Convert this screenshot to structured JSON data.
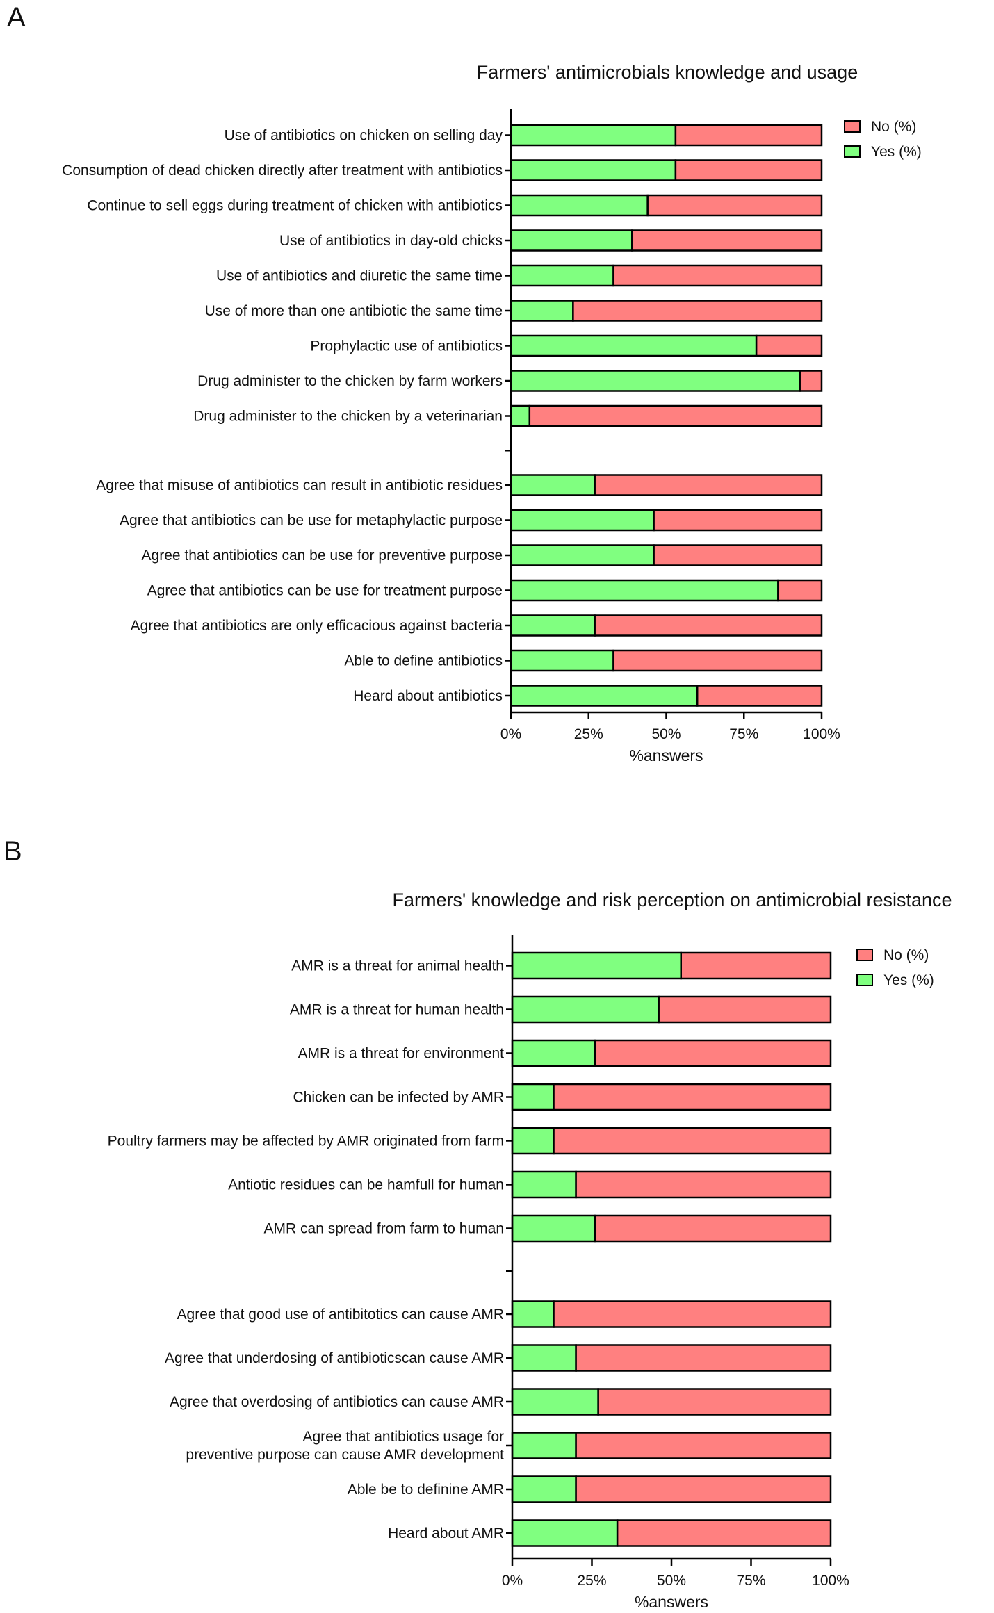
{
  "colors": {
    "yes": "#80ff80",
    "no": "#ff8080",
    "axis": "#000000"
  },
  "chart_data": [
    {
      "panel": "A",
      "type": "bar",
      "orientation": "horizontal",
      "stacked": true,
      "title": "Farmers' antimicrobials knowledge and usage",
      "xlabel": "%answers",
      "ylabel": "",
      "xlim": [
        0,
        100
      ],
      "xticks": [
        "0%",
        "25%",
        "50%",
        "75%",
        "100%"
      ],
      "legend": [
        "No (%)",
        "Yes (%)"
      ],
      "legend_position": "top-right",
      "groups": [
        {
          "items": [
            {
              "label": [
                "Use of antibiotics on chicken on selling day"
              ],
              "yes": 53,
              "no": 47
            },
            {
              "label": [
                "Consumption of dead chicken directly after treatment with antibiotics"
              ],
              "yes": 53,
              "no": 47
            },
            {
              "label": [
                "Continue to sell eggs during treatment of chicken with antibiotics"
              ],
              "yes": 44,
              "no": 56
            },
            {
              "label": [
                "Use of antibiotics in day-old chicks"
              ],
              "yes": 39,
              "no": 61
            },
            {
              "label": [
                "Use of antibiotics and diuretic the same time"
              ],
              "yes": 33,
              "no": 67
            },
            {
              "label": [
                "Use of more than one antibiotic the same time"
              ],
              "yes": 20,
              "no": 80
            },
            {
              "label": [
                "Prophylactic use of antibiotics"
              ],
              "yes": 79,
              "no": 21
            },
            {
              "label": [
                "Drug administer to the chicken by farm workers"
              ],
              "yes": 93,
              "no": 7
            },
            {
              "label": [
                "Drug administer to the chicken by a veterinarian"
              ],
              "yes": 6,
              "no": 94
            }
          ]
        },
        {
          "items": [
            {
              "label": [
                "Agree that misuse of antibiotics can result in antibiotic residues"
              ],
              "yes": 27,
              "no": 73
            },
            {
              "label": [
                "Agree that antibiotics can be use for metaphylactic purpose"
              ],
              "yes": 46,
              "no": 54
            },
            {
              "label": [
                "Agree that antibiotics can be use for preventive purpose"
              ],
              "yes": 46,
              "no": 54
            },
            {
              "label": [
                "Agree that antibiotics can be use for treatment purpose"
              ],
              "yes": 86,
              "no": 14
            },
            {
              "label": [
                "Agree that antibiotics are only efficacious against bacteria"
              ],
              "yes": 27,
              "no": 73
            },
            {
              "label": [
                "Able to define antibiotics"
              ],
              "yes": 33,
              "no": 67
            },
            {
              "label": [
                "Heard about antibiotics"
              ],
              "yes": 60,
              "no": 40
            }
          ]
        }
      ]
    },
    {
      "panel": "B",
      "type": "bar",
      "orientation": "horizontal",
      "stacked": true,
      "title": "Farmers' knowledge and risk perception on antimicrobial resistance",
      "xlabel": "%answers",
      "ylabel": "",
      "xlim": [
        0,
        100
      ],
      "xticks": [
        "0%",
        "25%",
        "50%",
        "75%",
        "100%"
      ],
      "legend": [
        "No (%)",
        "Yes (%)"
      ],
      "legend_position": "top-right",
      "groups": [
        {
          "items": [
            {
              "label": [
                "AMR is a threat for animal health"
              ],
              "yes": 53,
              "no": 47
            },
            {
              "label": [
                "AMR is a threat for human health"
              ],
              "yes": 46,
              "no": 54
            },
            {
              "label": [
                "AMR is a threat for environment"
              ],
              "yes": 26,
              "no": 74
            },
            {
              "label": [
                "Chicken can be infected by AMR"
              ],
              "yes": 13,
              "no": 87
            },
            {
              "label": [
                "Poultry farmers may be affected by AMR originated from farm"
              ],
              "yes": 13,
              "no": 87
            },
            {
              "label": [
                "Antiotic residues can be hamfull for human"
              ],
              "yes": 20,
              "no": 80
            },
            {
              "label": [
                "AMR can spread from farm to human"
              ],
              "yes": 26,
              "no": 74
            }
          ]
        },
        {
          "items": [
            {
              "label": [
                "Agree that good use of antibitotics can cause AMR"
              ],
              "yes": 13,
              "no": 87
            },
            {
              "label": [
                "Agree that underdosing of antibioticscan cause AMR"
              ],
              "yes": 20,
              "no": 80
            },
            {
              "label": [
                "Agree that overdosing of antibiotics can cause AMR"
              ],
              "yes": 27,
              "no": 73
            },
            {
              "label": [
                "Agree that antibiotics usage for",
                "preventive purpose can cause AMR development"
              ],
              "yes": 20,
              "no": 80
            },
            {
              "label": [
                "Able be to definine AMR"
              ],
              "yes": 20,
              "no": 80
            },
            {
              "label": [
                "Heard about AMR"
              ],
              "yes": 33,
              "no": 67
            }
          ]
        }
      ]
    }
  ]
}
